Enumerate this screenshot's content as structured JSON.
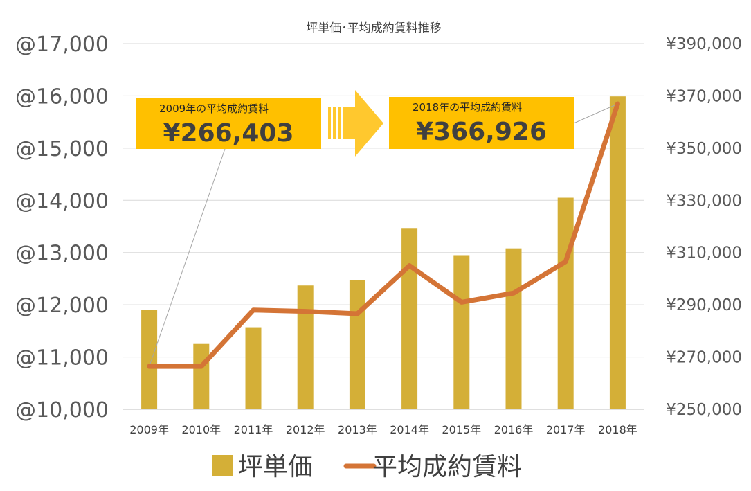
{
  "chart_data": {
    "type": "bar+line",
    "title": "坪単価･平均成約賃料推移",
    "categories": [
      "2009年",
      "2010年",
      "2011年",
      "2012年",
      "2013年",
      "2014年",
      "2015年",
      "2016年",
      "2017年",
      "2018年"
    ],
    "series": [
      {
        "name": "坪単価",
        "type": "bar",
        "axis": "left",
        "color": "#d4af37",
        "values": [
          11900,
          11250,
          11570,
          12370,
          12470,
          13470,
          12950,
          13080,
          14050,
          15990
        ]
      },
      {
        "name": "平均成約賃料",
        "type": "line",
        "axis": "right",
        "color": "#d47436",
        "values": [
          266403,
          266403,
          288000,
          287500,
          286600,
          305000,
          291000,
          294500,
          306500,
          366926
        ]
      }
    ],
    "y_left": {
      "ylim": [
        10000,
        17000
      ],
      "ticks": [
        10000,
        11000,
        12000,
        13000,
        14000,
        15000,
        16000,
        17000
      ],
      "tick_labels": [
        "@10,000",
        "@11,000",
        "@12,000",
        "@13,000",
        "@14,000",
        "@15,000",
        "@16,000",
        "@17,000"
      ]
    },
    "y_right": {
      "ylim": [
        250000,
        390000
      ],
      "ticks": [
        250000,
        270000,
        290000,
        310000,
        330000,
        350000,
        370000,
        390000
      ],
      "tick_labels": [
        "¥250,000",
        "¥270,000",
        "¥290,000",
        "¥310,000",
        "¥330,000",
        "¥350,000",
        "¥370,000",
        "¥390,000"
      ]
    },
    "grid": true,
    "legend_position": "bottom",
    "annotations": [
      {
        "label": "2009年の平均成約賃料",
        "value": "¥266,403",
        "points_to": "2009年"
      },
      {
        "label": "2018年の平均成約賃料",
        "value": "¥366,926",
        "points_to": "2018年"
      }
    ],
    "callout_color": "#ffc000",
    "arrow_color": "#ffc82e"
  }
}
